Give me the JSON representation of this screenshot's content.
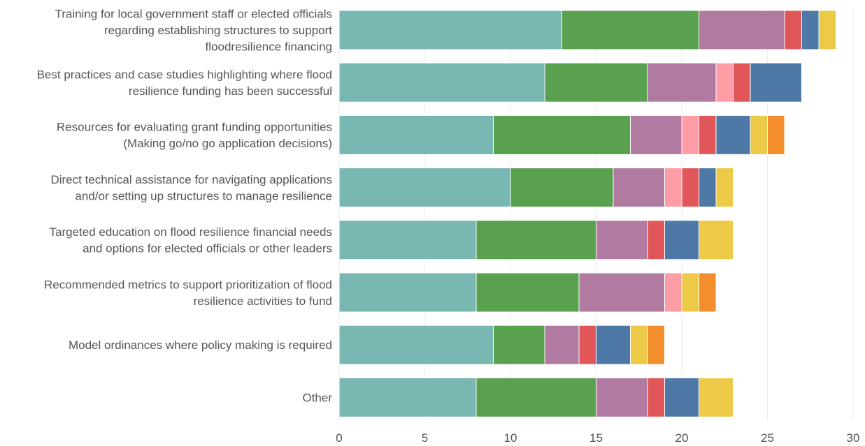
{
  "chart_data": {
    "type": "bar",
    "orientation": "horizontal",
    "stacked": true,
    "categories": [
      [
        "Training for local government staff or elected officials",
        "regarding establishing structures to support",
        "floodresilience financing"
      ],
      [
        "Best practices and case studies highlighting where flood",
        "resilience funding has been successful"
      ],
      [
        "Resources for evaluating grant funding opportunities",
        "(Making go/no go application decisions)"
      ],
      [
        "Direct technical assistance for navigating applications",
        "and/or setting up structures to manage resilience"
      ],
      [
        "Targeted education on flood resilience financial needs",
        "and options for elected officials or other leaders"
      ],
      [
        "Recommended metrics to support prioritization of flood",
        "resilience activities to fund"
      ],
      [
        "Model ordinances where policy making is required"
      ],
      [
        "Other"
      ]
    ],
    "series": [
      {
        "color": "#79b7b2",
        "values": [
          13,
          12,
          9,
          10,
          8,
          8,
          9,
          8
        ]
      },
      {
        "color": "#59a14f",
        "values": [
          8,
          6,
          8,
          6,
          7,
          6,
          3,
          7
        ]
      },
      {
        "color": "#b07aa1",
        "values": [
          5,
          4,
          3,
          3,
          3,
          5,
          2,
          3
        ]
      },
      {
        "color": "#ff9da7",
        "values": [
          0,
          1,
          1,
          1,
          0,
          1,
          0,
          0
        ]
      },
      {
        "color": "#e15759",
        "values": [
          1,
          1,
          1,
          1,
          1,
          0,
          1,
          1
        ]
      },
      {
        "color": "#4e79a7",
        "values": [
          1,
          3,
          2,
          1,
          2,
          0,
          2,
          2
        ]
      },
      {
        "color": "#edc948",
        "values": [
          1,
          0,
          1,
          1,
          2,
          1,
          1,
          2
        ]
      },
      {
        "color": "#f28e2b",
        "values": [
          0,
          0,
          1,
          0,
          0,
          1,
          1,
          0
        ]
      }
    ],
    "xlim": [
      0,
      30
    ],
    "xticks": [
      0,
      5,
      10,
      15,
      20,
      25,
      30
    ],
    "grid": true,
    "legend": "none",
    "title": "",
    "xlabel": "",
    "ylabel": ""
  }
}
